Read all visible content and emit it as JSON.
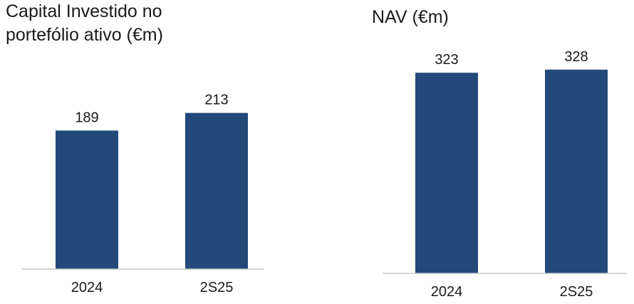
{
  "chart_data": [
    {
      "type": "bar",
      "title": [
        "Capital Investido no",
        "portefólio ativo (€m)"
      ],
      "categories": [
        "2024",
        "2S25"
      ],
      "values": [
        189,
        213
      ],
      "color": "#22497a",
      "ylim": [
        0,
        300
      ]
    },
    {
      "type": "bar",
      "title": [
        "NAV (€m)"
      ],
      "categories": [
        "2024",
        "2S25"
      ],
      "values": [
        323,
        328
      ],
      "color": "#22497a",
      "ylim": [
        0,
        400
      ]
    }
  ]
}
